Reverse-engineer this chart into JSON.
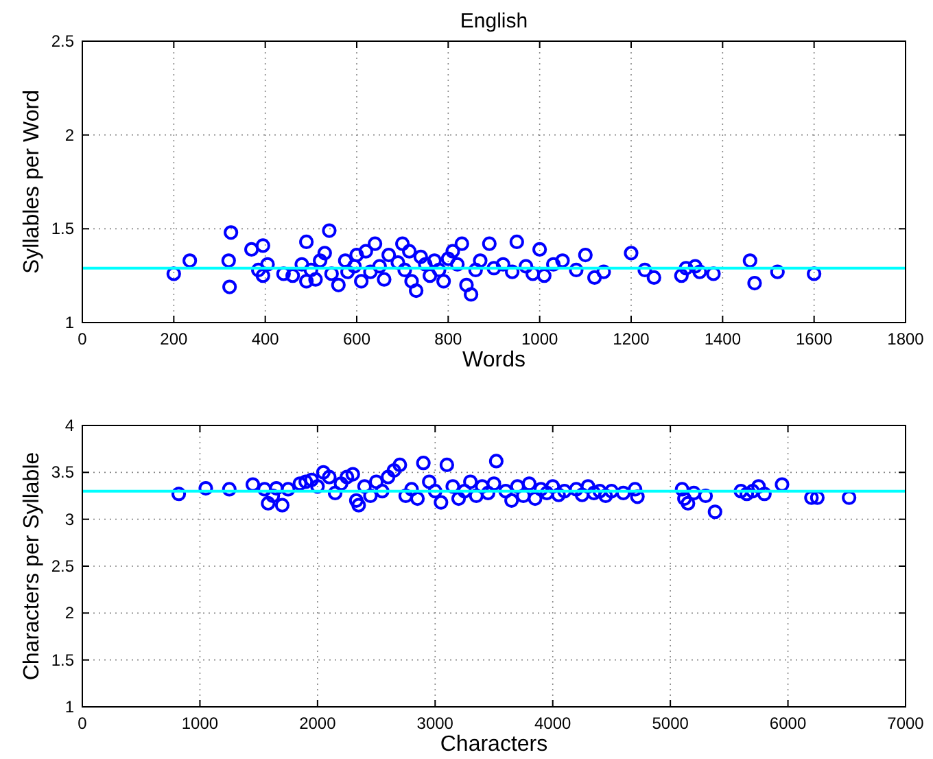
{
  "chart_data": [
    {
      "type": "scatter",
      "title": "English",
      "xlabel": "Words",
      "ylabel": "Syllables per Word",
      "xlim": [
        0,
        1800
      ],
      "xticks": [
        0,
        200,
        400,
        600,
        800,
        1000,
        1200,
        1400,
        1600,
        1800
      ],
      "ylim": [
        1,
        2.5
      ],
      "yticks": [
        1,
        1.5,
        2,
        2.5
      ],
      "grid": true,
      "marker": "circle",
      "ref_lines": [
        {
          "axis": "y",
          "value": 1.29,
          "color": "#00ffff"
        }
      ],
      "series": [
        {
          "color": "#0000ff",
          "x": [
            200,
            235,
            325,
            320,
            322,
            370,
            385,
            395,
            395,
            405,
            440,
            460,
            480,
            490,
            490,
            500,
            510,
            520,
            530,
            540,
            545,
            560,
            575,
            580,
            595,
            600,
            610,
            620,
            630,
            640,
            650,
            660,
            670,
            690,
            700,
            705,
            715,
            720,
            730,
            740,
            750,
            760,
            770,
            780,
            790,
            800,
            810,
            820,
            830,
            840,
            850,
            860,
            870,
            890,
            900,
            920,
            940,
            950,
            970,
            985,
            1000,
            1010,
            1030,
            1050,
            1080,
            1100,
            1120,
            1140,
            1200,
            1230,
            1250,
            1310,
            1320,
            1340,
            1350,
            1380,
            1460,
            1470,
            1520,
            1600
          ],
          "values": [
            1.26,
            1.33,
            1.48,
            1.33,
            1.19,
            1.39,
            1.28,
            1.41,
            1.25,
            1.31,
            1.26,
            1.25,
            1.31,
            1.22,
            1.43,
            1.28,
            1.23,
            1.33,
            1.37,
            1.49,
            1.26,
            1.2,
            1.33,
            1.27,
            1.3,
            1.36,
            1.22,
            1.38,
            1.27,
            1.42,
            1.3,
            1.23,
            1.36,
            1.32,
            1.42,
            1.28,
            1.38,
            1.22,
            1.17,
            1.35,
            1.31,
            1.25,
            1.33,
            1.28,
            1.22,
            1.34,
            1.38,
            1.31,
            1.42,
            1.2,
            1.15,
            1.28,
            1.33,
            1.42,
            1.29,
            1.31,
            1.27,
            1.43,
            1.3,
            1.26,
            1.39,
            1.25,
            1.31,
            1.33,
            1.28,
            1.36,
            1.24,
            1.27,
            1.37,
            1.28,
            1.24,
            1.25,
            1.29,
            1.3,
            1.27,
            1.26,
            1.33,
            1.21,
            1.27,
            1.26
          ]
        }
      ]
    },
    {
      "type": "scatter",
      "xlabel": "Characters",
      "ylabel": "Characters per Syllable",
      "xlim": [
        0,
        7000
      ],
      "xticks": [
        0,
        1000,
        2000,
        3000,
        4000,
        5000,
        6000,
        7000
      ],
      "ylim": [
        1,
        4
      ],
      "yticks": [
        1,
        1.5,
        2,
        2.5,
        3,
        3.5,
        4
      ],
      "grid": true,
      "marker": "circle",
      "ref_lines": [
        {
          "axis": "y",
          "value": 3.3,
          "color": "#00ffff"
        }
      ],
      "series": [
        {
          "color": "#0000ff",
          "x": [
            820,
            1050,
            1250,
            1450,
            1550,
            1580,
            1620,
            1650,
            1700,
            1750,
            1850,
            1900,
            1950,
            2000,
            2050,
            2100,
            2150,
            2200,
            2250,
            2300,
            2330,
            2350,
            2400,
            2450,
            2500,
            2550,
            2600,
            2650,
            2700,
            2750,
            2800,
            2850,
            2900,
            2950,
            3000,
            3050,
            3100,
            3150,
            3200,
            3250,
            3300,
            3350,
            3400,
            3450,
            3500,
            3520,
            3600,
            3650,
            3700,
            3750,
            3800,
            3850,
            3900,
            3950,
            4000,
            4050,
            4100,
            4200,
            4250,
            4300,
            4350,
            4400,
            4450,
            4500,
            4600,
            4700,
            4720,
            5100,
            5120,
            5150,
            5200,
            5300,
            5380,
            5600,
            5650,
            5700,
            5750,
            5800,
            5950,
            6200,
            6250,
            6520
          ],
          "values": [
            3.27,
            3.33,
            3.32,
            3.37,
            3.32,
            3.17,
            3.25,
            3.33,
            3.15,
            3.32,
            3.38,
            3.4,
            3.42,
            3.35,
            3.5,
            3.45,
            3.28,
            3.38,
            3.45,
            3.48,
            3.2,
            3.15,
            3.35,
            3.25,
            3.4,
            3.3,
            3.45,
            3.52,
            3.58,
            3.25,
            3.32,
            3.22,
            3.6,
            3.4,
            3.3,
            3.18,
            3.58,
            3.35,
            3.22,
            3.3,
            3.4,
            3.25,
            3.35,
            3.28,
            3.38,
            3.62,
            3.3,
            3.2,
            3.35,
            3.25,
            3.38,
            3.22,
            3.32,
            3.28,
            3.35,
            3.26,
            3.3,
            3.32,
            3.26,
            3.35,
            3.28,
            3.3,
            3.25,
            3.3,
            3.28,
            3.32,
            3.24,
            3.32,
            3.22,
            3.17,
            3.28,
            3.25,
            3.08,
            3.3,
            3.27,
            3.3,
            3.35,
            3.27,
            3.37,
            3.23,
            3.23,
            3.23
          ]
        }
      ]
    }
  ]
}
